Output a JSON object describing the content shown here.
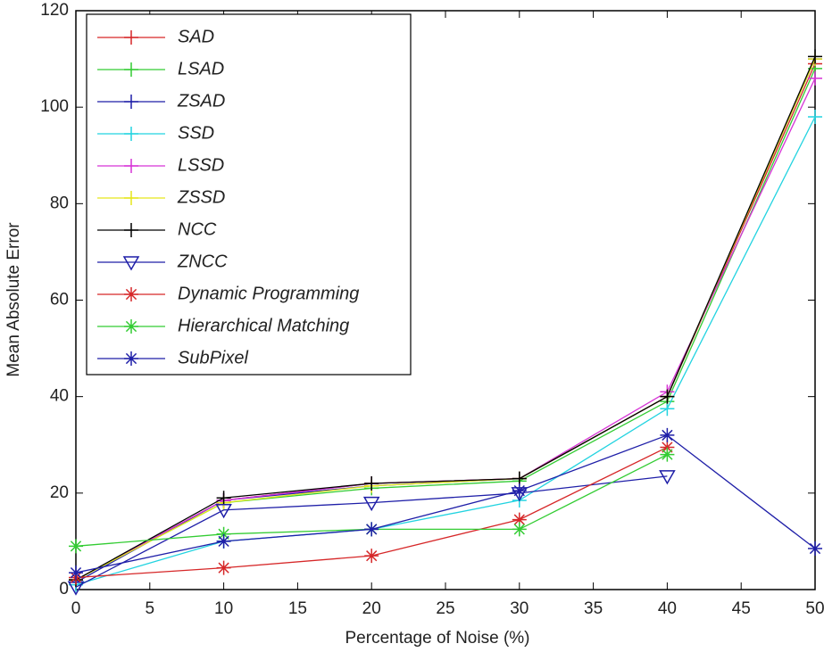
{
  "chart_data": {
    "type": "line",
    "xlabel": "Percentage of Noise (%)",
    "ylabel": "Mean Absolute Error",
    "x": [
      0,
      10,
      20,
      30,
      40,
      50
    ],
    "xlim": [
      0,
      50
    ],
    "xticks": [
      0,
      5,
      10,
      15,
      20,
      25,
      30,
      35,
      40,
      45,
      50
    ],
    "ylim": [
      0,
      120
    ],
    "yticks": [
      0,
      20,
      40,
      60,
      80,
      100,
      120
    ],
    "legend": "upper left",
    "series": [
      {
        "name": "SAD",
        "color": "#d62728",
        "marker": "+",
        "values": [
          2,
          18.5,
          22,
          23,
          40,
          109
        ]
      },
      {
        "name": "LSAD",
        "color": "#33cc33",
        "marker": "+",
        "values": [
          2,
          18,
          21,
          22.5,
          39,
          108
        ]
      },
      {
        "name": "ZSAD",
        "color": "#1f1fa8",
        "marker": "+",
        "values": [
          1.5,
          18.5,
          21.5,
          23,
          40,
          110
        ]
      },
      {
        "name": "SSD",
        "color": "#22d3e0",
        "marker": "+",
        "values": [
          1,
          10,
          12.5,
          18.5,
          37.5,
          98
        ]
      },
      {
        "name": "LSSD",
        "color": "#d633d6",
        "marker": "+",
        "values": [
          2,
          18.5,
          22,
          23,
          41,
          106
        ]
      },
      {
        "name": "ZSSD",
        "color": "#e6e61a",
        "marker": "+",
        "values": [
          2,
          18,
          21.5,
          23,
          40,
          110
        ]
      },
      {
        "name": "NCC",
        "color": "#000000",
        "marker": "+",
        "values": [
          2,
          19,
          22,
          23,
          40,
          110.5
        ]
      },
      {
        "name": "ZNCC",
        "color": "#1f1fa8",
        "marker": "v",
        "values": [
          0.5,
          16.5,
          18,
          20,
          23.5,
          null
        ]
      },
      {
        "name": "Dynamic Programming",
        "color": "#d62728",
        "marker": "*",
        "values": [
          2.5,
          4.5,
          7,
          14.5,
          29.5,
          null
        ]
      },
      {
        "name": "Hierarchical Matching",
        "color": "#33cc33",
        "marker": "*",
        "values": [
          9,
          11.5,
          12.5,
          12.5,
          28,
          null
        ]
      },
      {
        "name": "SubPixel",
        "color": "#1f1fa8",
        "marker": "*",
        "values": [
          3.5,
          10,
          12.5,
          20.5,
          32,
          8.5
        ]
      }
    ]
  }
}
